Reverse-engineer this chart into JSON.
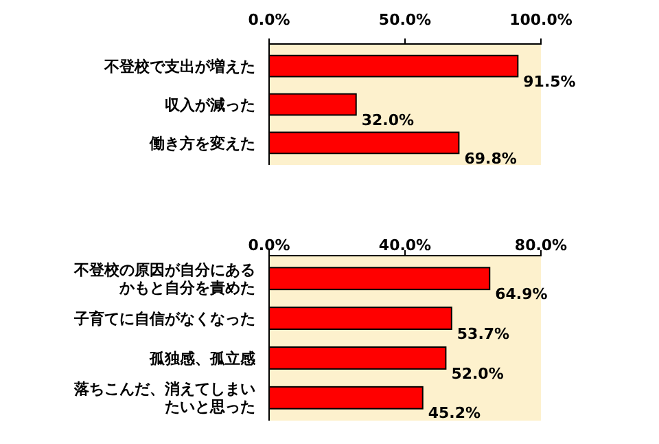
{
  "chart_data": [
    {
      "type": "bar",
      "orientation": "horizontal",
      "categories": [
        "不登校で支出が増えた",
        "収入が減った",
        "働き方を変えた"
      ],
      "values": [
        91.5,
        32.0,
        69.8
      ],
      "color": "#ff0000",
      "value_labels": [
        "91.5%",
        "32.0%",
        "69.8%"
      ],
      "xlim": [
        0,
        100
      ],
      "xticks": [
        {
          "value": 0,
          "label": "0.0%"
        },
        {
          "value": 50,
          "label": "50.0%"
        },
        {
          "value": 100,
          "label": "100.0%"
        }
      ],
      "grid": false
    },
    {
      "type": "bar",
      "orientation": "horizontal",
      "categories": [
        "不登校の原因が自分にあるかもと自分を責めた",
        "子育てに自信がなくなった",
        "孤独感、孤立感",
        "落ちこんだ、消えてしまいたいと思った"
      ],
      "values": [
        64.9,
        53.7,
        52.0,
        45.2
      ],
      "color": "#ff0000",
      "value_labels": [
        "64.9%",
        "53.7%",
        "52.0%",
        "45.2%"
      ],
      "xlim": [
        0,
        80
      ],
      "xticks": [
        {
          "value": 0,
          "label": "0.0%"
        },
        {
          "value": 40,
          "label": "40.0%"
        },
        {
          "value": 80,
          "label": "80.0%"
        }
      ],
      "grid": false
    }
  ]
}
